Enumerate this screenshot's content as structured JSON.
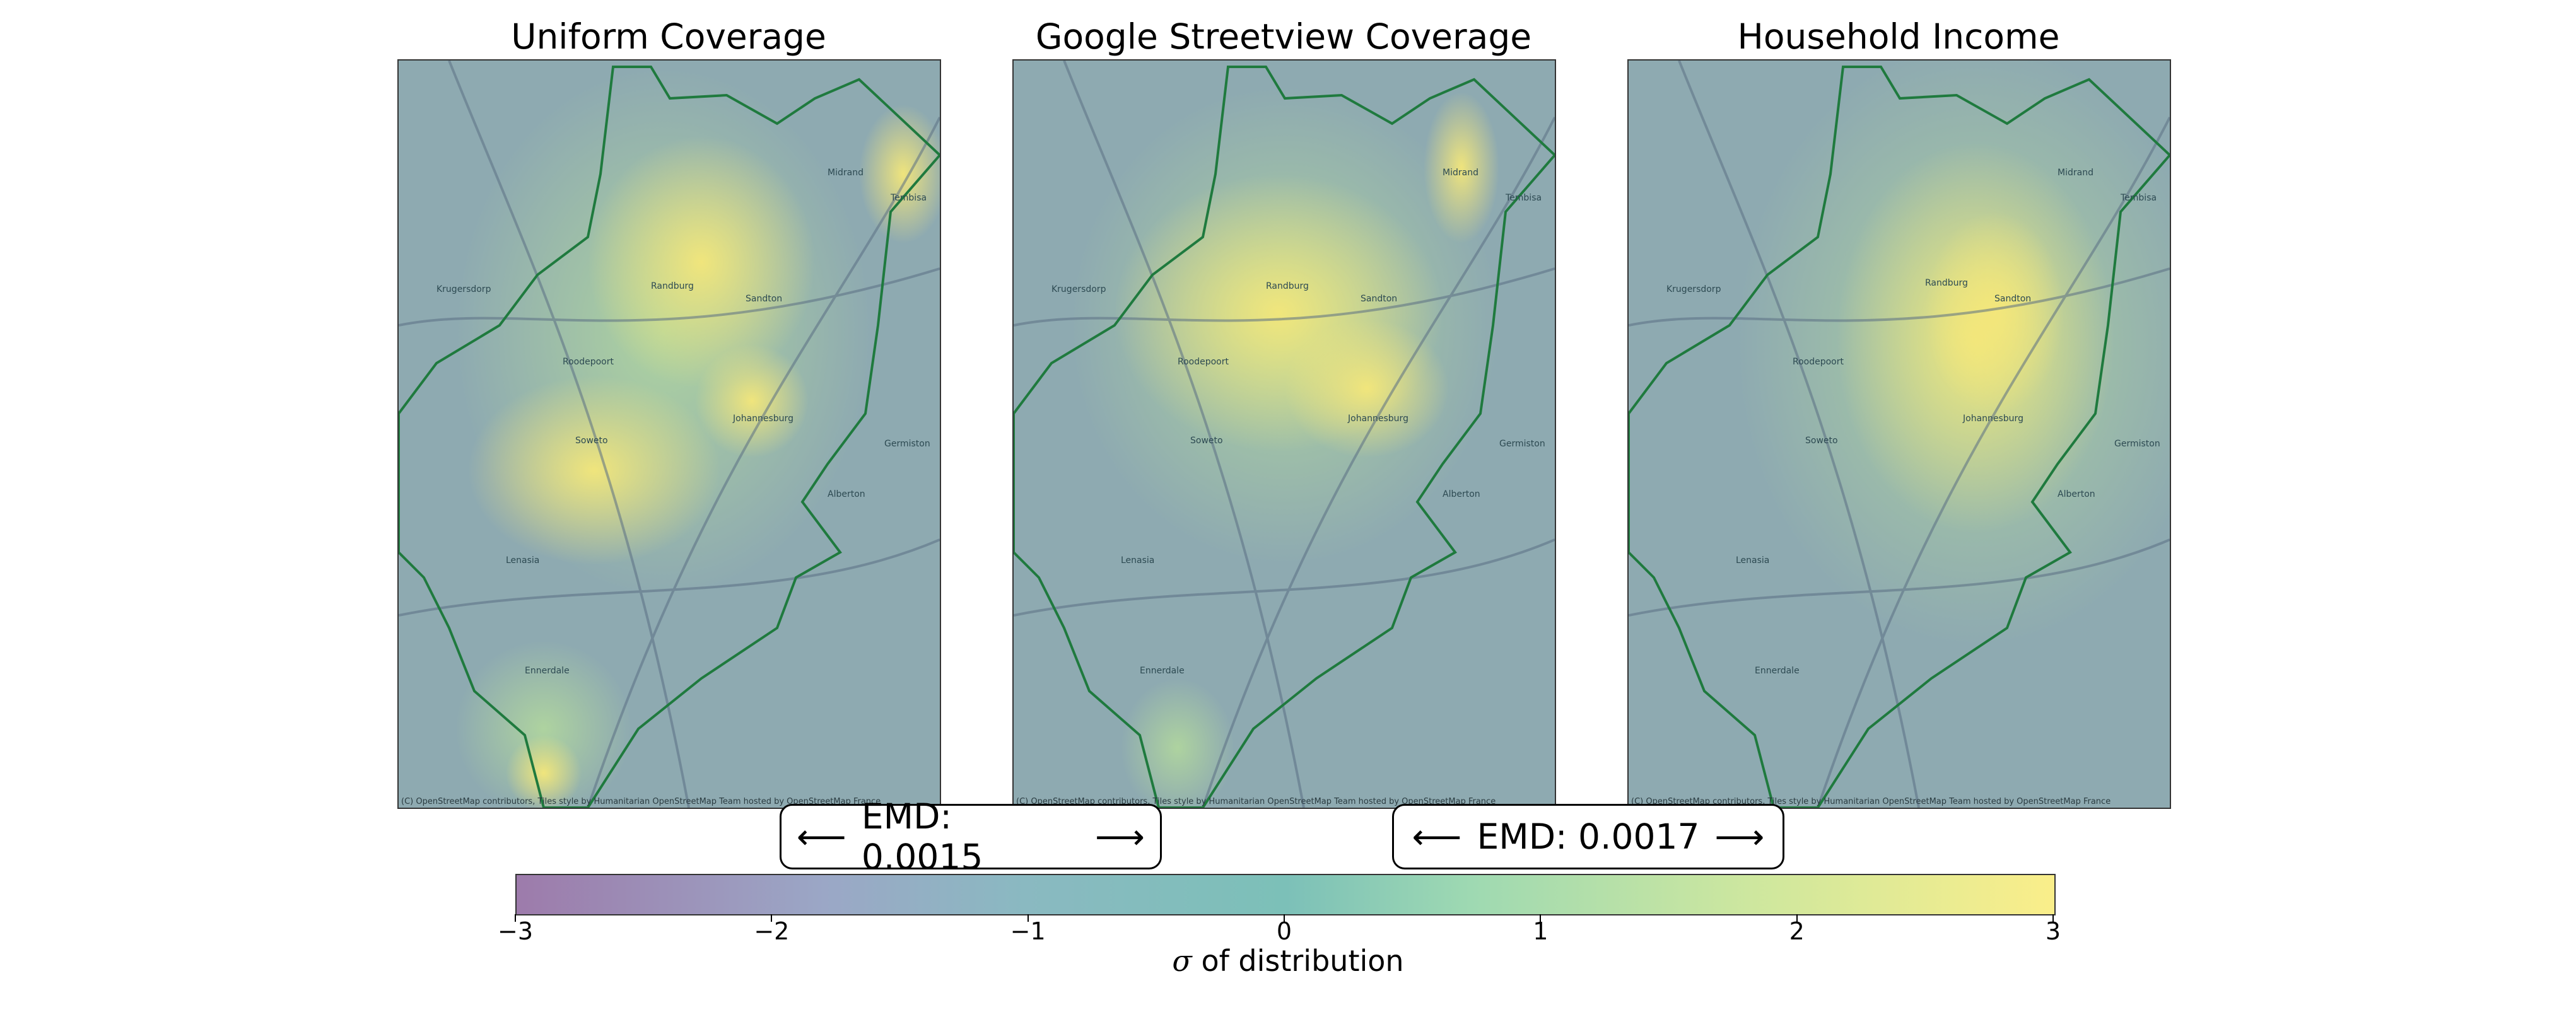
{
  "panels": [
    {
      "title": "Uniform Coverage",
      "attribution": "(C) OpenStreetMap contributors, Tiles style by Humanitarian OpenStreetMap Team hosted by OpenStreetMap France"
    },
    {
      "title": "Google Streetview Coverage",
      "attribution": "(C) OpenStreetMap contributors, Tiles style by Humanitarian OpenStreetMap Team hosted by OpenStreetMap France"
    },
    {
      "title": "Household Income",
      "attribution": "(C) OpenStreetMap contributors, Tiles style by Humanitarian OpenStreetMap Team hosted by OpenStreetMap France"
    }
  ],
  "places": [
    "Randburg",
    "Sandton",
    "Roodepoort",
    "Soweto",
    "Johannesburg",
    "Krugersdorp",
    "Midrand",
    "Lenasia",
    "Ennerdale",
    "Germiston",
    "Alberton",
    "Tembisa"
  ],
  "emd": [
    {
      "left_arrow": "⟵",
      "label": "EMD: 0.0015",
      "right_arrow": "⟶"
    },
    {
      "left_arrow": "⟵",
      "label": "EMD: 0.0017",
      "right_arrow": "⟶"
    }
  ],
  "colorbar": {
    "label_symbol": "σ",
    "label_text": " of distribution",
    "ticks": [
      "−3",
      "−2",
      "−1",
      "0",
      "1",
      "2",
      "3"
    ],
    "range": [
      -3,
      3
    ],
    "colors": {
      "low": "#9d7bab",
      "mid": "#7cc0b8",
      "high": "#faee8a"
    }
  },
  "colors": {
    "boundary": "#1f7a3e",
    "roads": "#5b6f84",
    "base": "#8eaab1"
  }
}
